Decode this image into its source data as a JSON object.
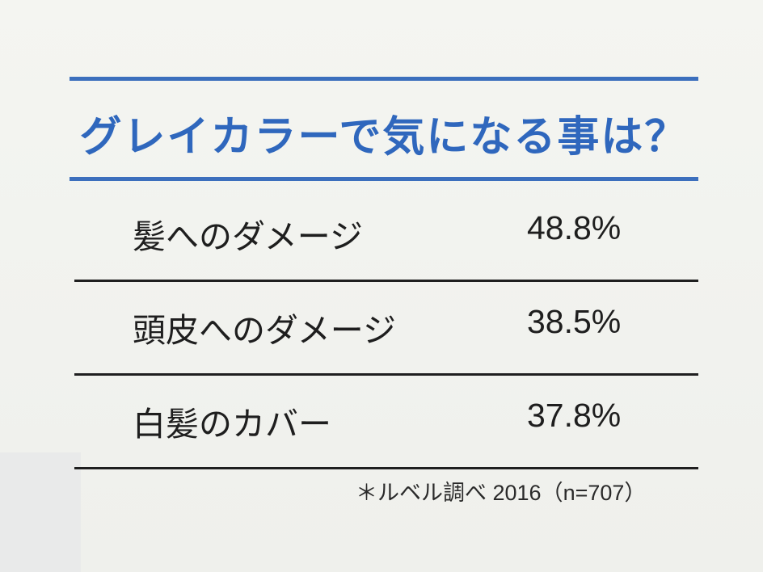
{
  "chart_data": {
    "type": "table",
    "title": "グレイカラーで気になる事は？",
    "rows": [
      {
        "label": "髪へのダメージ",
        "value": 48.8,
        "display": "48.8%"
      },
      {
        "label": "頭皮へのダメージ",
        "value": 38.5,
        "display": "38.5%"
      },
      {
        "label": "白髪のカバー",
        "value": 37.8,
        "display": "37.8%"
      }
    ],
    "note": "＊ルベル調べ 2016（n=707）",
    "colors": {
      "title": "#2f67bd",
      "rules": "#3c6fbd",
      "text": "#1e1e1e"
    }
  }
}
